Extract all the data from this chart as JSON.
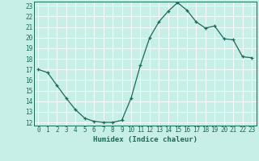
{
  "x": [
    0,
    1,
    2,
    3,
    4,
    5,
    6,
    7,
    8,
    9,
    10,
    11,
    12,
    13,
    14,
    15,
    16,
    17,
    18,
    19,
    20,
    21,
    22,
    23
  ],
  "y": [
    17.0,
    16.7,
    15.5,
    14.3,
    13.2,
    12.4,
    12.1,
    12.0,
    12.0,
    12.2,
    14.3,
    17.4,
    20.0,
    21.5,
    22.5,
    23.3,
    22.6,
    21.5,
    20.9,
    21.1,
    19.9,
    19.8,
    18.2,
    18.1
  ],
  "xlabel": "Humidex (Indice chaleur)",
  "bg_color": "#c8eee8",
  "line_color": "#1a6b5a",
  "grid_color": "#ffffff",
  "ylim_min": 11.7,
  "ylim_max": 23.4,
  "xlim_min": -0.5,
  "xlim_max": 23.5,
  "yticks": [
    12,
    13,
    14,
    15,
    16,
    17,
    18,
    19,
    20,
    21,
    22,
    23
  ],
  "xticks": [
    0,
    1,
    2,
    3,
    4,
    5,
    6,
    7,
    8,
    9,
    10,
    11,
    12,
    13,
    14,
    15,
    16,
    17,
    18,
    19,
    20,
    21,
    22,
    23
  ],
  "tick_fontsize": 5.5,
  "xlabel_fontsize": 6.5
}
